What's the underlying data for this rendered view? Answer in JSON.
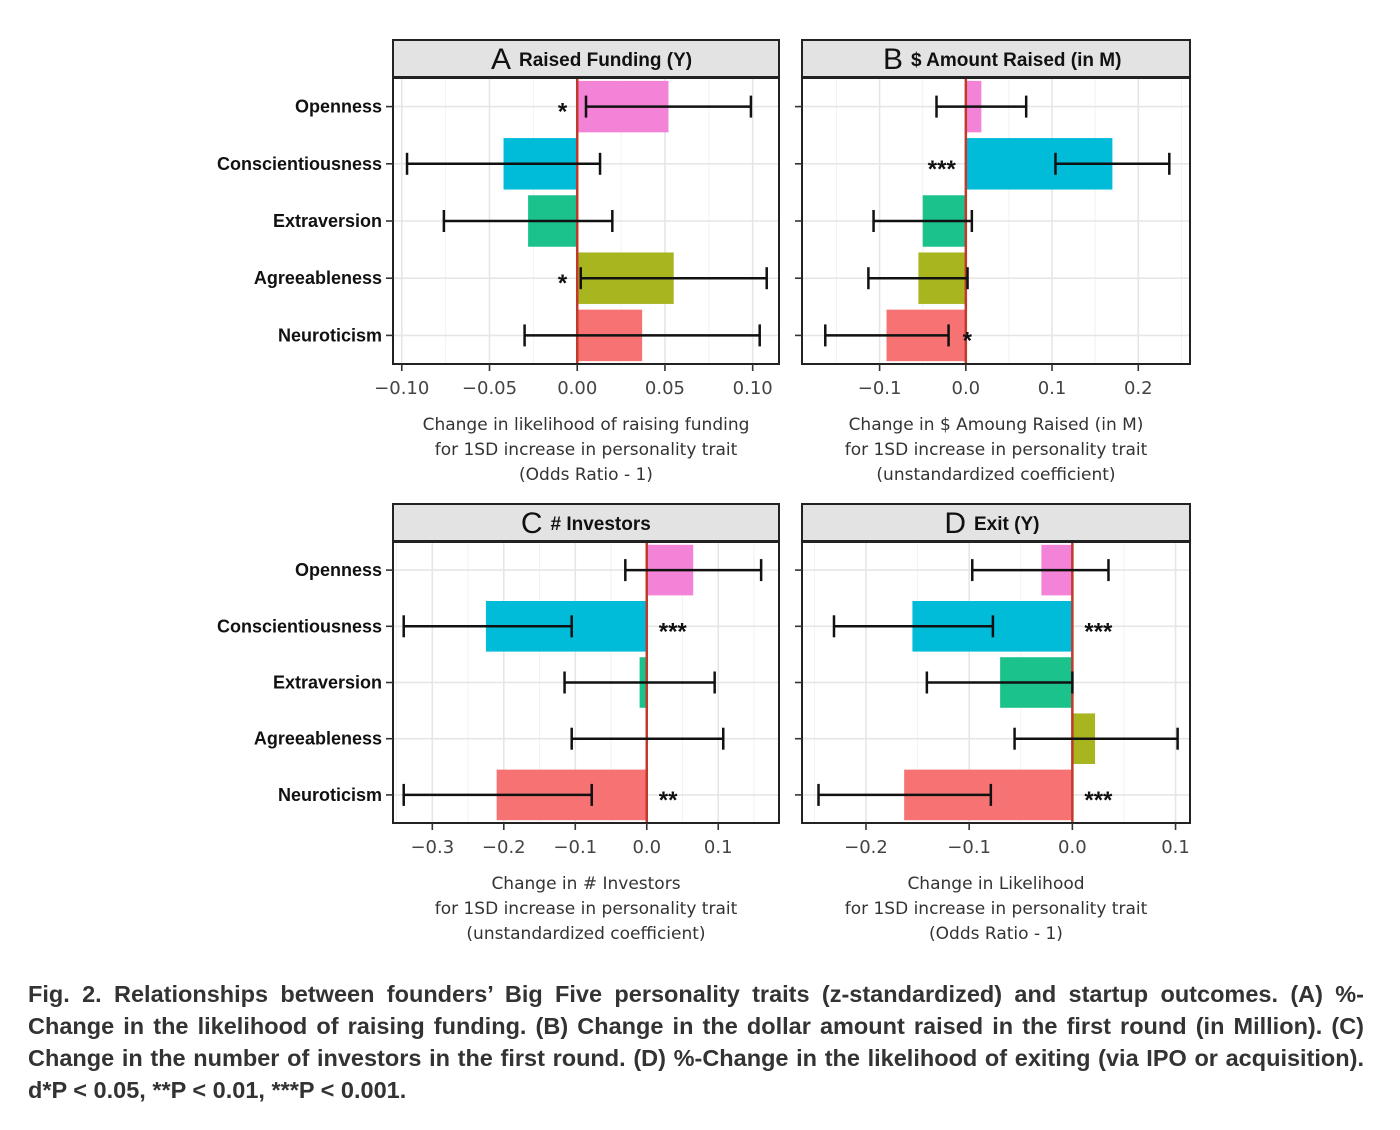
{
  "figure": {
    "caption": "Fig. 2. Relationships between founders’ Big Five personality traits (z-standardized) and startup outcomes. (A) %-Change in the likelihood of raising funding. (B) Change in the dollar amount raised in the first round (in Million). (C) Change in the number of investors in the first round. (D) %-Change in the likelihood of exiting (via IPO or acquisition). d*P < 0.05, **P < 0.01, ***P < 0.001."
  },
  "colors": {
    "Openness": "#F283D6",
    "Conscientiousness": "#00BCD8",
    "Extraversion": "#1BC28C",
    "Agreeableness": "#A8B51F",
    "Neuroticism": "#F77373",
    "zero_line": "#C0392B",
    "strip_fill": "#E3E3E3"
  },
  "chart_data": [
    {
      "type": "bar",
      "orientation": "horizontal",
      "panel_letter": "A",
      "title": "Raised Funding (Y)",
      "categories": [
        "Openness",
        "Conscientiousness",
        "Extraversion",
        "Agreeableness",
        "Neuroticism"
      ],
      "values": [
        0.052,
        -0.042,
        -0.028,
        0.055,
        0.037
      ],
      "ci_low": [
        0.005,
        -0.097,
        -0.076,
        0.002,
        -0.03
      ],
      "ci_high": [
        0.099,
        0.013,
        0.02,
        0.108,
        0.104
      ],
      "significance": [
        "*",
        "",
        "",
        "*",
        ""
      ],
      "xlim": [
        -0.105,
        0.115
      ],
      "xticks": [
        -0.1,
        -0.05,
        0.0,
        0.05,
        0.1
      ],
      "xtick_labels": [
        "−0.10",
        "−0.05",
        "0.00",
        "0.05",
        "0.10"
      ],
      "xlabel": [
        "Change in likelihood of raising funding",
        "for 1SD increase in personality trait",
        "(Odds Ratio - 1)"
      ],
      "grid": true
    },
    {
      "type": "bar",
      "orientation": "horizontal",
      "panel_letter": "B",
      "title": "$ Amount Raised (in M)",
      "categories": [
        "Openness",
        "Conscientiousness",
        "Extraversion",
        "Agreeableness",
        "Neuroticism"
      ],
      "values": [
        0.018,
        0.17,
        -0.05,
        -0.055,
        -0.092
      ],
      "ci_low": [
        -0.034,
        0.104,
        -0.107,
        -0.113,
        -0.163
      ],
      "ci_high": [
        0.07,
        0.236,
        0.007,
        0.002,
        -0.02
      ],
      "significance": [
        "",
        "***",
        "",
        "",
        "*"
      ],
      "xlim": [
        -0.19,
        0.26
      ],
      "xticks": [
        -0.1,
        0.0,
        0.1,
        0.2
      ],
      "xtick_labels": [
        "−0.1",
        "0.0",
        "0.1",
        "0.2"
      ],
      "xlabel": [
        "Change in $ Amoung Raised (in M)",
        "for 1SD increase in personality trait",
        "(unstandardized coefficient)"
      ],
      "grid": true
    },
    {
      "type": "bar",
      "orientation": "horizontal",
      "panel_letter": "C",
      "title": "# Investors",
      "categories": [
        "Openness",
        "Conscientiousness",
        "Extraversion",
        "Agreeableness",
        "Neuroticism"
      ],
      "values": [
        0.065,
        -0.225,
        -0.01,
        0.0,
        -0.21
      ],
      "ci_low": [
        -0.03,
        -0.34,
        -0.115,
        -0.105,
        -0.34
      ],
      "ci_high": [
        0.16,
        -0.105,
        0.095,
        0.107,
        -0.077
      ],
      "significance": [
        "",
        "***",
        "",
        "",
        "**"
      ],
      "xlim": [
        -0.355,
        0.185
      ],
      "xticks": [
        -0.3,
        -0.2,
        -0.1,
        0.0,
        0.1
      ],
      "xtick_labels": [
        "−0.3",
        "−0.2",
        "−0.1",
        "0.0",
        "0.1"
      ],
      "xlabel": [
        "Change in # Investors",
        "for 1SD increase in personality trait",
        "(unstandardized coefficient)"
      ],
      "grid": true
    },
    {
      "type": "bar",
      "orientation": "horizontal",
      "panel_letter": "D",
      "title": "Exit (Y)",
      "categories": [
        "Openness",
        "Conscientiousness",
        "Extraversion",
        "Agreeableness",
        "Neuroticism"
      ],
      "values": [
        -0.03,
        -0.155,
        -0.07,
        0.022,
        -0.163
      ],
      "ci_low": [
        -0.097,
        -0.231,
        -0.141,
        -0.056,
        -0.246
      ],
      "ci_high": [
        0.035,
        -0.077,
        0.0,
        0.102,
        -0.079
      ],
      "significance": [
        "",
        "***",
        "",
        "",
        "***"
      ],
      "xlim": [
        -0.262,
        0.114
      ],
      "xticks": [
        -0.2,
        -0.1,
        0.0,
        0.1
      ],
      "xtick_labels": [
        "−0.2",
        "−0.1",
        "0.0",
        "0.1"
      ],
      "xlabel": [
        "Change in Likelihood",
        "for 1SD increase in personality trait",
        "(Odds Ratio - 1)"
      ],
      "grid": true
    }
  ]
}
